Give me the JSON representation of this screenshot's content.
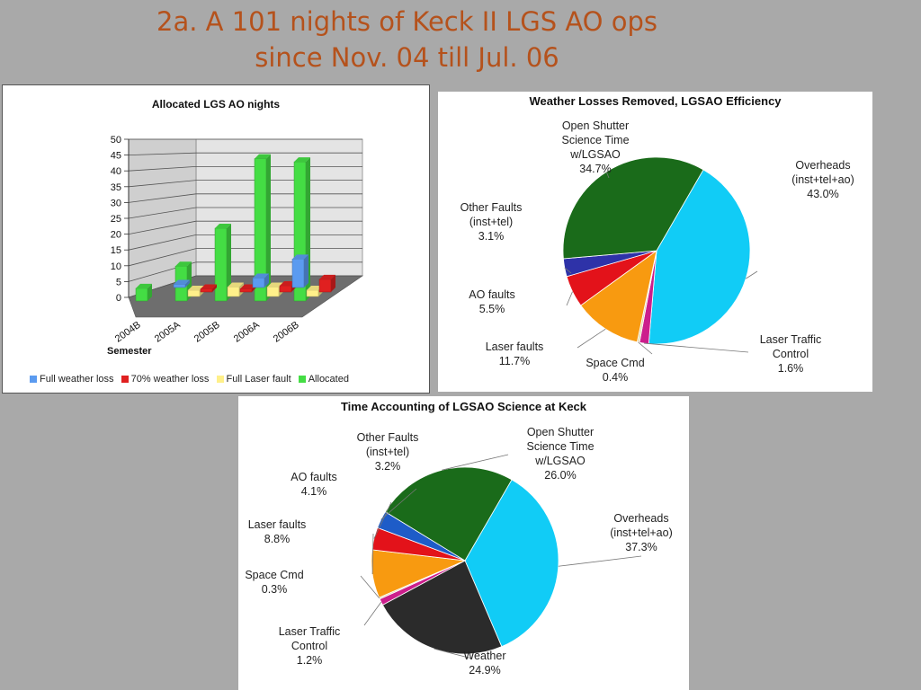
{
  "slide": {
    "title_line1": "2a. A 101 nights of Keck II LGS AO ops",
    "title_line2": "since Nov. 04 till Jul. 06"
  },
  "chart_data": [
    {
      "type": "bar",
      "title": "Allocated LGS AO nights",
      "xlabel": "Semester",
      "ylabel": "",
      "ylim": [
        0,
        50
      ],
      "yticks": [
        0,
        5,
        10,
        15,
        20,
        25,
        30,
        35,
        40,
        45,
        50
      ],
      "grid": true,
      "legend_position": "bottom",
      "categories": [
        "2004B",
        "2005A",
        "2005B",
        "2006A",
        "2006B"
      ],
      "series": [
        {
          "name": "Full weather loss",
          "color": "#5b9bf0",
          "values": [
            1,
            0,
            3,
            9,
            0
          ]
        },
        {
          "name": "70% weather loss",
          "color": "#e02020",
          "values": [
            0,
            1,
            1,
            2,
            4
          ]
        },
        {
          "name": "Full Laser fault",
          "color": "#fff08a",
          "values": [
            0,
            2,
            3,
            3,
            2
          ]
        },
        {
          "name": "Allocated",
          "color": "#44dd44",
          "values": [
            4,
            11,
            23,
            45,
            44
          ]
        }
      ]
    },
    {
      "type": "pie",
      "title": "Weather Losses Removed, LGSAO Efficiency",
      "slices": [
        {
          "label1": "Overheads",
          "label2": "(inst+tel+ao)",
          "label3": "",
          "pct": "43.0%",
          "value": 43.0,
          "color": "#11ccf6"
        },
        {
          "label1": "Laser Traffic",
          "label2": "Control",
          "label3": "",
          "pct": "1.6%",
          "value": 1.6,
          "color": "#cc1e8c"
        },
        {
          "label1": "Space Cmd",
          "label2": "",
          "label3": "",
          "pct": "0.4%",
          "value": 0.4,
          "color": "#e3d9b0"
        },
        {
          "label1": "Laser faults",
          "label2": "",
          "label3": "",
          "pct": "11.7%",
          "value": 11.7,
          "color": "#f89a10"
        },
        {
          "label1": "AO faults",
          "label2": "",
          "label3": "",
          "pct": "5.5%",
          "value": 5.5,
          "color": "#e3121a"
        },
        {
          "label1": "Other Faults",
          "label2": "(inst+tel)",
          "label3": "",
          "pct": "3.1%",
          "value": 3.1,
          "color": "#2e32a8"
        },
        {
          "label1": "Open Shutter",
          "label2": "Science Time",
          "label3": "w/LGSAO",
          "pct": "34.7%",
          "value": 34.7,
          "color": "#1a6b1a"
        }
      ]
    },
    {
      "type": "pie",
      "title": "Time Accounting of LGSAO Science at Keck",
      "slices": [
        {
          "label1": "Overheads",
          "label2": "(inst+tel+ao)",
          "label3": "",
          "pct": "37.3%",
          "value": 37.3,
          "color": "#11ccf6"
        },
        {
          "label1": "Weather",
          "label2": "",
          "label3": "",
          "pct": "24.9%",
          "value": 24.9,
          "color": "#2b2b2b"
        },
        {
          "label1": "Laser Traffic",
          "label2": "Control",
          "label3": "",
          "pct": "1.2%",
          "value": 1.2,
          "color": "#cc1e8c"
        },
        {
          "label1": "Space Cmd",
          "label2": "",
          "label3": "",
          "pct": "0.3%",
          "value": 0.3,
          "color": "#e3d9b0"
        },
        {
          "label1": "Laser faults",
          "label2": "",
          "label3": "",
          "pct": "8.8%",
          "value": 8.8,
          "color": "#f89a10"
        },
        {
          "label1": "AO faults",
          "label2": "",
          "label3": "",
          "pct": "4.1%",
          "value": 4.1,
          "color": "#e3121a"
        },
        {
          "label1": "Other Faults",
          "label2": "(inst+tel)",
          "label3": "",
          "pct": "3.2%",
          "value": 3.2,
          "color": "#1e5cc8"
        },
        {
          "label1": "Open Shutter",
          "label2": "Science Time",
          "label3": "w/LGSAO",
          "pct": "26.0%",
          "value": 26.0,
          "color": "#1a6b1a"
        }
      ]
    }
  ]
}
